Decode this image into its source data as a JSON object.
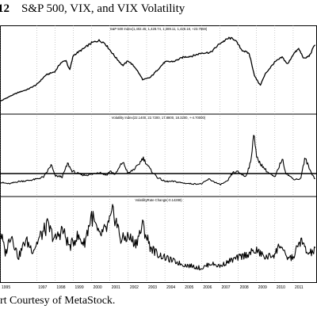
{
  "figure": {
    "number": "12",
    "title": "S&P 500, VIX, and VIX Volatility",
    "credit": "rt Courtesy of MetaStock."
  },
  "chart_data": [
    {
      "type": "line",
      "title": "S&P 500 Index(1,402.45, 1,428.74, 1,389.11, 1,428.18, +23.7559)",
      "x": [
        1995.0,
        1995.5,
        1996.0,
        1996.5,
        1997.0,
        1997.5,
        1998.0,
        1998.3,
        1998.6,
        1998.8,
        1999.0,
        1999.5,
        2000.0,
        2000.4,
        2000.7,
        2001.0,
        2001.3,
        2001.7,
        2002.0,
        2002.4,
        2002.8,
        2003.2,
        2003.6,
        2004.0,
        2004.5,
        2005.0,
        2005.5,
        2006.0,
        2006.5,
        2007.0,
        2007.5,
        2007.8,
        2008.2,
        2008.6,
        2008.9,
        2009.2,
        2009.5,
        2010.0,
        2010.4,
        2010.7,
        2011.0,
        2011.3,
        2011.6,
        2011.9,
        2012.2
      ],
      "values": [
        460,
        540,
        610,
        660,
        740,
        900,
        960,
        1100,
        1150,
        980,
        1230,
        1330,
        1440,
        1480,
        1440,
        1320,
        1200,
        1060,
        1140,
        1020,
        820,
        860,
        990,
        1120,
        1130,
        1200,
        1220,
        1270,
        1280,
        1430,
        1520,
        1500,
        1320,
        1260,
        880,
        730,
        930,
        1120,
        1200,
        1080,
        1250,
        1340,
        1170,
        1230,
        1420
      ]
    },
    {
      "type": "line",
      "title": "Volatility Index(22.1400, 22.7200, 17.8800, 18.3200, +-4.70000)",
      "x": [
        1995.0,
        1995.5,
        1996.0,
        1996.5,
        1997.0,
        1997.4,
        1997.8,
        1998.0,
        1998.4,
        1998.7,
        1998.9,
        1999.2,
        1999.6,
        2000.0,
        2000.4,
        2000.8,
        2001.0,
        2001.3,
        2001.7,
        2002.0,
        2002.5,
        2002.8,
        2003.2,
        2003.6,
        2004.0,
        2004.5,
        2005.0,
        2005.5,
        2006.0,
        2006.4,
        2007.0,
        2007.4,
        2007.7,
        2008.0,
        2008.4,
        2008.7,
        2008.85,
        2009.0,
        2009.3,
        2009.6,
        2010.0,
        2010.4,
        2010.6,
        2011.0,
        2011.4,
        2011.65,
        2011.9,
        2012.2
      ],
      "values": [
        14,
        12,
        15,
        16,
        18,
        21,
        36,
        22,
        21,
        38,
        29,
        25,
        23,
        24,
        27,
        23,
        28,
        24,
        40,
        25,
        34,
        45,
        30,
        20,
        15,
        15,
        13,
        12,
        12,
        18,
        11,
        15,
        26,
        27,
        21,
        40,
        80,
        45,
        35,
        27,
        20,
        44,
        26,
        18,
        18,
        45,
        30,
        18
      ],
      "reference_line": 25
    },
    {
      "type": "line",
      "title": "VolatilityRate Change(-0.14288)",
      "x": [
        1995.0,
        1995.3,
        1995.6,
        1996.0,
        1996.4,
        1996.8,
        1997.2,
        1997.6,
        1998.0,
        1998.4,
        1998.8,
        1999.2,
        1999.6,
        2000.0,
        2000.4,
        2000.8,
        2001.0,
        2001.2,
        2001.6,
        2002.0,
        2002.4,
        2002.8,
        2003.2,
        2003.6,
        2004.0,
        2004.5,
        2005.0,
        2005.5,
        2006.0,
        2006.5,
        2007.0,
        2007.5,
        2008.0,
        2008.5,
        2009.0,
        2009.5,
        2010.0,
        2010.3,
        2010.6,
        2011.0,
        2011.4,
        2011.8,
        2012.2
      ],
      "values": [
        0.7,
        0.35,
        0.65,
        0.3,
        0.55,
        0.4,
        0.6,
        0.75,
        0.55,
        0.7,
        0.45,
        0.6,
        0.5,
        0.9,
        0.6,
        0.7,
        0.8,
        0.95,
        0.55,
        0.6,
        0.5,
        0.75,
        0.45,
        0.35,
        0.3,
        0.25,
        0.2,
        0.18,
        0.15,
        0.22,
        0.18,
        0.25,
        0.3,
        0.35,
        0.4,
        0.3,
        0.35,
        0.5,
        0.3,
        0.3,
        0.55,
        0.35,
        0.4
      ]
    }
  ],
  "x_axis": {
    "type": "date",
    "range": [
      1995.0,
      2012.3
    ],
    "tick_labels": [
      "1995",
      "1997",
      "1998",
      "1999",
      "2000",
      "2001",
      "2002",
      "2003",
      "2004",
      "2005",
      "2006",
      "2007",
      "2008",
      "2009",
      "2010",
      "2011"
    ],
    "tick_years": [
      1995,
      1997,
      1998,
      1999,
      2000,
      2001,
      2002,
      2003,
      2004,
      2005,
      2006,
      2007,
      2008,
      2009,
      2010,
      2011
    ]
  }
}
